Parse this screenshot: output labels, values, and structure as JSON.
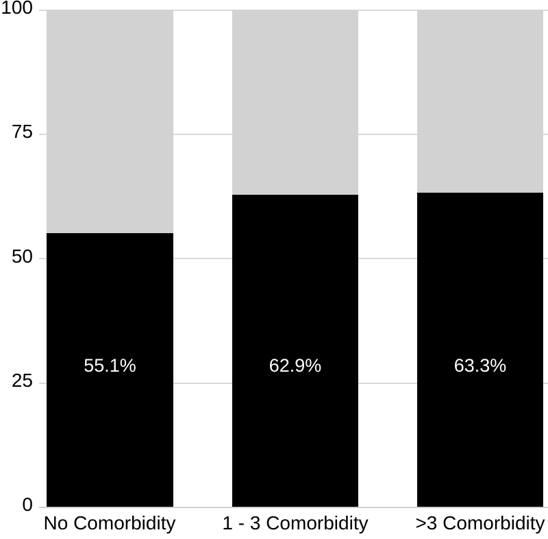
{
  "chart_data": {
    "type": "bar",
    "stacked": true,
    "title": "",
    "xlabel": "",
    "ylabel": "",
    "categories": [
      "No Comorbidity",
      "1 - 3 Comorbidity",
      ">3 Comorbidity"
    ],
    "series": [
      {
        "name": "black-segment",
        "color": "#000000",
        "values": [
          55.1,
          62.9,
          63.3
        ]
      },
      {
        "name": "gray-segment",
        "color": "#d2d2d2",
        "values": [
          44.9,
          37.1,
          36.7
        ]
      }
    ],
    "bar_value_labels": [
      "55.1%",
      "62.9%",
      "63.3%"
    ],
    "ylim": [
      0,
      100
    ],
    "yticks": [
      0,
      25,
      50,
      75,
      100
    ],
    "ytick_labels": {
      "v100": "100",
      "v75": "75",
      "v50": "50",
      "v25": "25",
      "v0": "0"
    },
    "grid": "horizontal",
    "legend": "none",
    "colors": {
      "bar_primary": "#000000",
      "bar_secondary": "#d2d2d2",
      "gridline": "#d9d9d9",
      "axis_text": "#000000",
      "bar_label_text": "#ffffff",
      "background": "#ffffff"
    }
  }
}
